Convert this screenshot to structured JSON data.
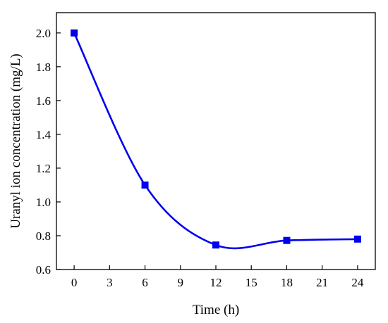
{
  "chart_data": {
    "type": "line",
    "title": "",
    "xlabel": "Time (h)",
    "ylabel": "Uranyl ion concentration (mg/L)",
    "xlim": [
      -1.5,
      25.5
    ],
    "ylim": [
      0.6,
      2.12
    ],
    "xticks": [
      0,
      3,
      6,
      9,
      12,
      15,
      18,
      21,
      24
    ],
    "xtick_labels": [
      "0",
      "3",
      "6",
      "9",
      "12",
      "15",
      "18",
      "21",
      "24"
    ],
    "yticks": [
      0.6,
      0.8,
      1.0,
      1.2,
      1.4,
      1.6,
      1.8,
      2.0
    ],
    "ytick_labels": [
      "0.6",
      "0.8",
      "1.0",
      "1.2",
      "1.4",
      "1.6",
      "1.8",
      "2.0"
    ],
    "grid": false,
    "legend": "none",
    "marker": "square",
    "smooth": true,
    "series": [
      {
        "x": [
          0,
          6,
          12,
          18,
          24
        ],
        "y": [
          2.0,
          1.1,
          0.745,
          0.772,
          0.78
        ],
        "color": "#0000ee"
      }
    ]
  }
}
